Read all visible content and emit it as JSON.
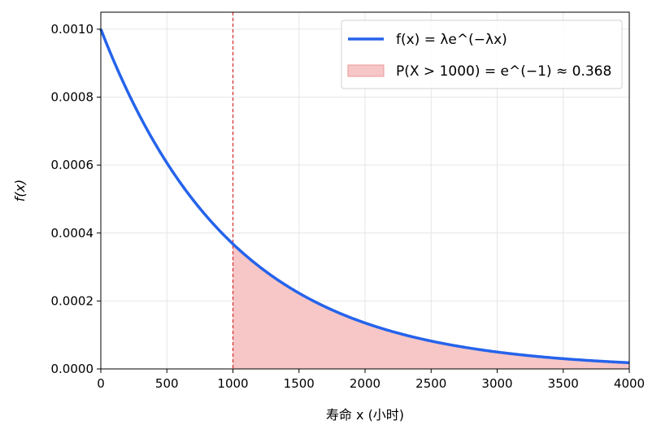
{
  "chart_data": {
    "type": "area",
    "title": "",
    "xlabel": "寿命 x (小时)",
    "ylabel": "f(x)",
    "xlim": [
      0,
      4000
    ],
    "ylim": [
      0,
      0.00105
    ],
    "x_ticks": [
      "0",
      "500",
      "1000",
      "1500",
      "2000",
      "2500",
      "3000",
      "3500",
      "4000"
    ],
    "y_ticks": [
      "0.0000",
      "0.0002",
      "0.0004",
      "0.0006",
      "0.0008",
      "0.0010"
    ],
    "grid": true,
    "legend_position": "top-right",
    "lambda": 0.001,
    "threshold": 1000,
    "series": [
      {
        "name": "f(x) = λe^(−λx)",
        "kind": "line",
        "color": "#2563eb",
        "x": [
          0,
          250,
          500,
          750,
          1000,
          1250,
          1500,
          1750,
          2000,
          2250,
          2500,
          2750,
          3000,
          3250,
          3500,
          3750,
          4000
        ],
        "y": [
          0.001,
          0.000779,
          0.000607,
          0.000472,
          0.000368,
          0.000287,
          0.000223,
          0.000174,
          0.000135,
          0.000105,
          8.2e-05,
          6.4e-05,
          5e-05,
          3.9e-05,
          3e-05,
          2.4e-05,
          1.8e-05
        ]
      },
      {
        "name": "P(X > 1000) = e^(−1) ≈ 0.368",
        "kind": "area",
        "color": "#f5b7b7",
        "x_from": 1000,
        "x_to": 4000
      }
    ],
    "vline": {
      "x": 1000,
      "color": "#d62728",
      "style": "dashed"
    }
  }
}
